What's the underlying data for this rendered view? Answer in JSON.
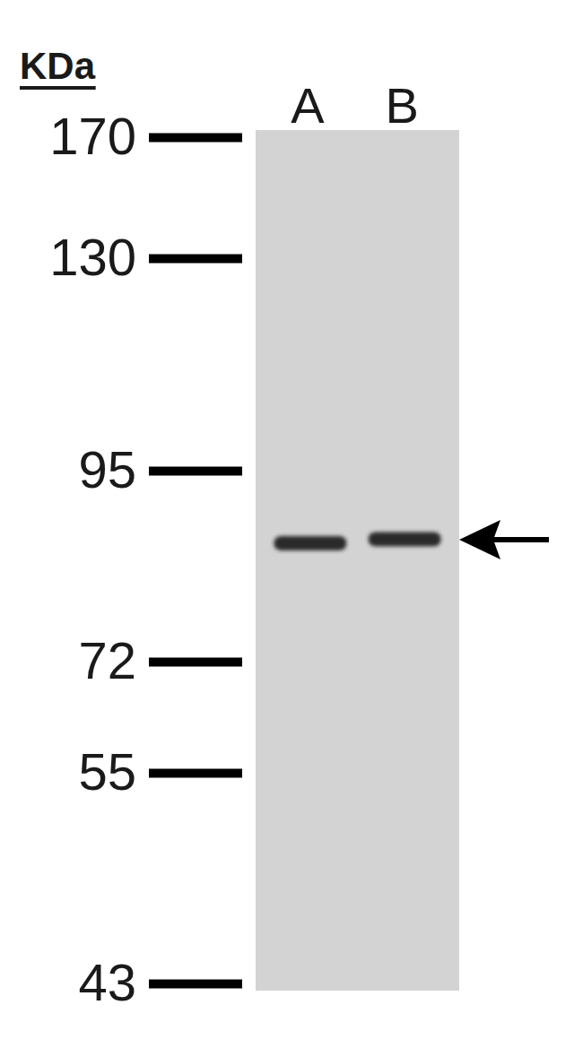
{
  "chart_data": {
    "type": "blot",
    "ylabel": "KDa",
    "categories": [
      "A",
      "B"
    ],
    "values": [
      85.5,
      86
    ],
    "color": "#2a2a2a",
    "ylim": [
      43,
      170
    ],
    "yticks": [
      170,
      130,
      95,
      72,
      55,
      43
    ],
    "log": "y"
  }
}
